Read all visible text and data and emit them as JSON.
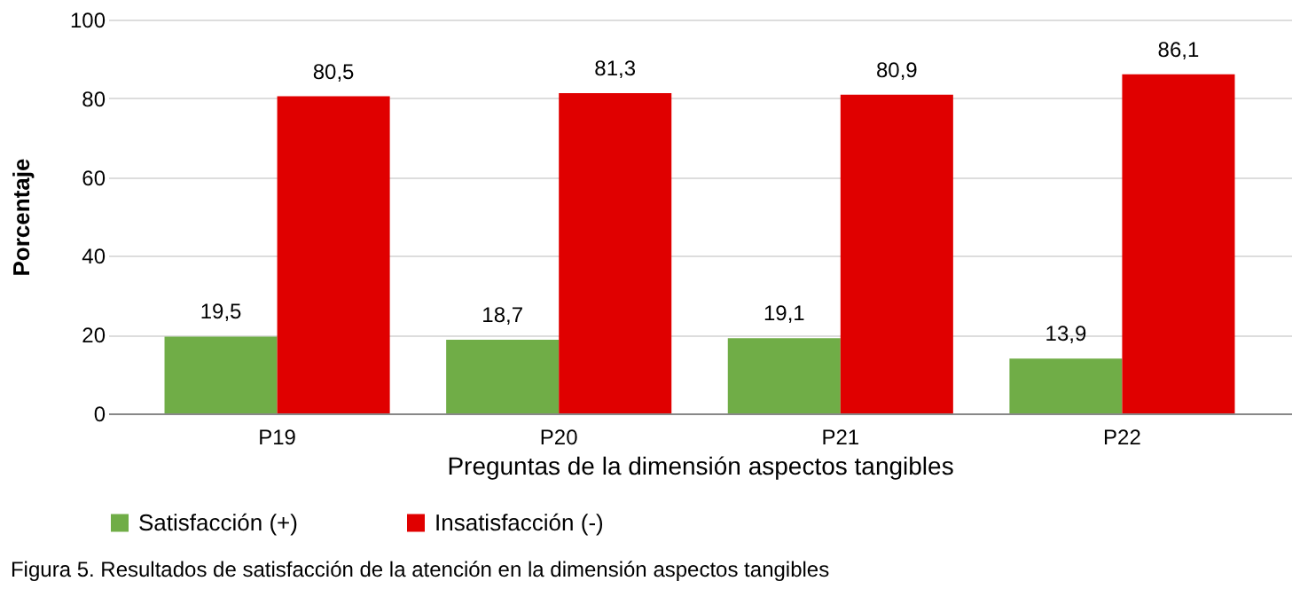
{
  "chart_data": {
    "type": "bar",
    "categories": [
      "P19",
      "P20",
      "P21",
      "P22"
    ],
    "series": [
      {
        "name": "Satisfacción (+)",
        "color": "#70ad47",
        "values": [
          19.5,
          18.7,
          19.1,
          13.9
        ],
        "value_labels": [
          "19,5",
          "18,7",
          "19,1",
          "13,9"
        ]
      },
      {
        "name": "Insatisfacción (-)",
        "color": "#e00000",
        "values": [
          80.5,
          81.3,
          80.9,
          86.1
        ],
        "value_labels": [
          "80,5",
          "81,3",
          "80,9",
          "86,1"
        ]
      }
    ],
    "xlabel": "Preguntas de la dimensión aspectos tangibles",
    "ylabel": "Porcentaje",
    "ylim": [
      0,
      100
    ],
    "yticks": [
      0,
      20,
      40,
      60,
      80,
      100
    ],
    "grid": "y",
    "legend": "bottom",
    "annotations": [
      "Figura 5. Resultados de satisfacción de la atención en la dimensión aspectos tangibles"
    ]
  }
}
